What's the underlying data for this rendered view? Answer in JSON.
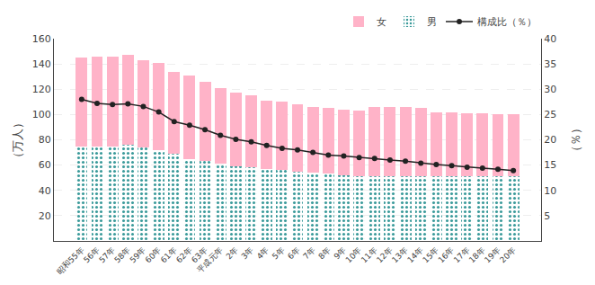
{
  "chart_data": {
    "type": "bar",
    "stacked": true,
    "categories": [
      "昭和55年",
      "56年",
      "57年",
      "58年",
      "59年",
      "60年",
      "61年",
      "62年",
      "63年",
      "平成元年",
      "2年",
      "3年",
      "4年",
      "5年",
      "6年",
      "7年",
      "8年",
      "9年",
      "10年",
      "11年",
      "12年",
      "13年",
      "14年",
      "15年",
      "16年",
      "17年",
      "18年",
      "19年",
      "20年"
    ],
    "series": [
      {
        "name": "男",
        "color": "#5bbcbc",
        "values": [
          75,
          75,
          75,
          76,
          74,
          72,
          69,
          65,
          63,
          61,
          59,
          58,
          57,
          56,
          55,
          54,
          53,
          52,
          51,
          51,
          51,
          51,
          51,
          51,
          51,
          51,
          51,
          51,
          51
        ]
      },
      {
        "name": "女",
        "color": "#ffb3c8",
        "values": [
          70,
          71,
          71,
          71,
          69,
          69,
          65,
          66,
          63,
          60,
          58,
          57,
          54,
          54,
          53,
          52,
          52,
          52,
          52,
          55,
          55,
          55,
          54,
          51,
          51,
          50,
          50,
          49,
          49
        ]
      },
      {
        "name": "構成比（％）",
        "type": "line",
        "marker": "circle",
        "axis": "y2",
        "color": "#222222",
        "values": [
          28.0,
          27.2,
          27.0,
          27.1,
          26.6,
          25.5,
          23.6,
          22.9,
          22.0,
          20.9,
          20.1,
          19.6,
          18.9,
          18.3,
          18.0,
          17.5,
          17.0,
          16.8,
          16.5,
          16.3,
          16.0,
          15.8,
          15.4,
          15.1,
          14.9,
          14.6,
          14.4,
          14.2,
          13.9
        ]
      }
    ],
    "ylabel": "（万人）",
    "y2label": "（％）",
    "ylim": [
      0,
      160
    ],
    "yticks": [
      20,
      40,
      60,
      80,
      100,
      120,
      140,
      160
    ],
    "y2lim": [
      0,
      40
    ],
    "y2ticks": [
      5,
      10,
      15,
      20,
      25,
      30,
      35,
      40
    ],
    "grid": true,
    "legend": "upper right"
  }
}
